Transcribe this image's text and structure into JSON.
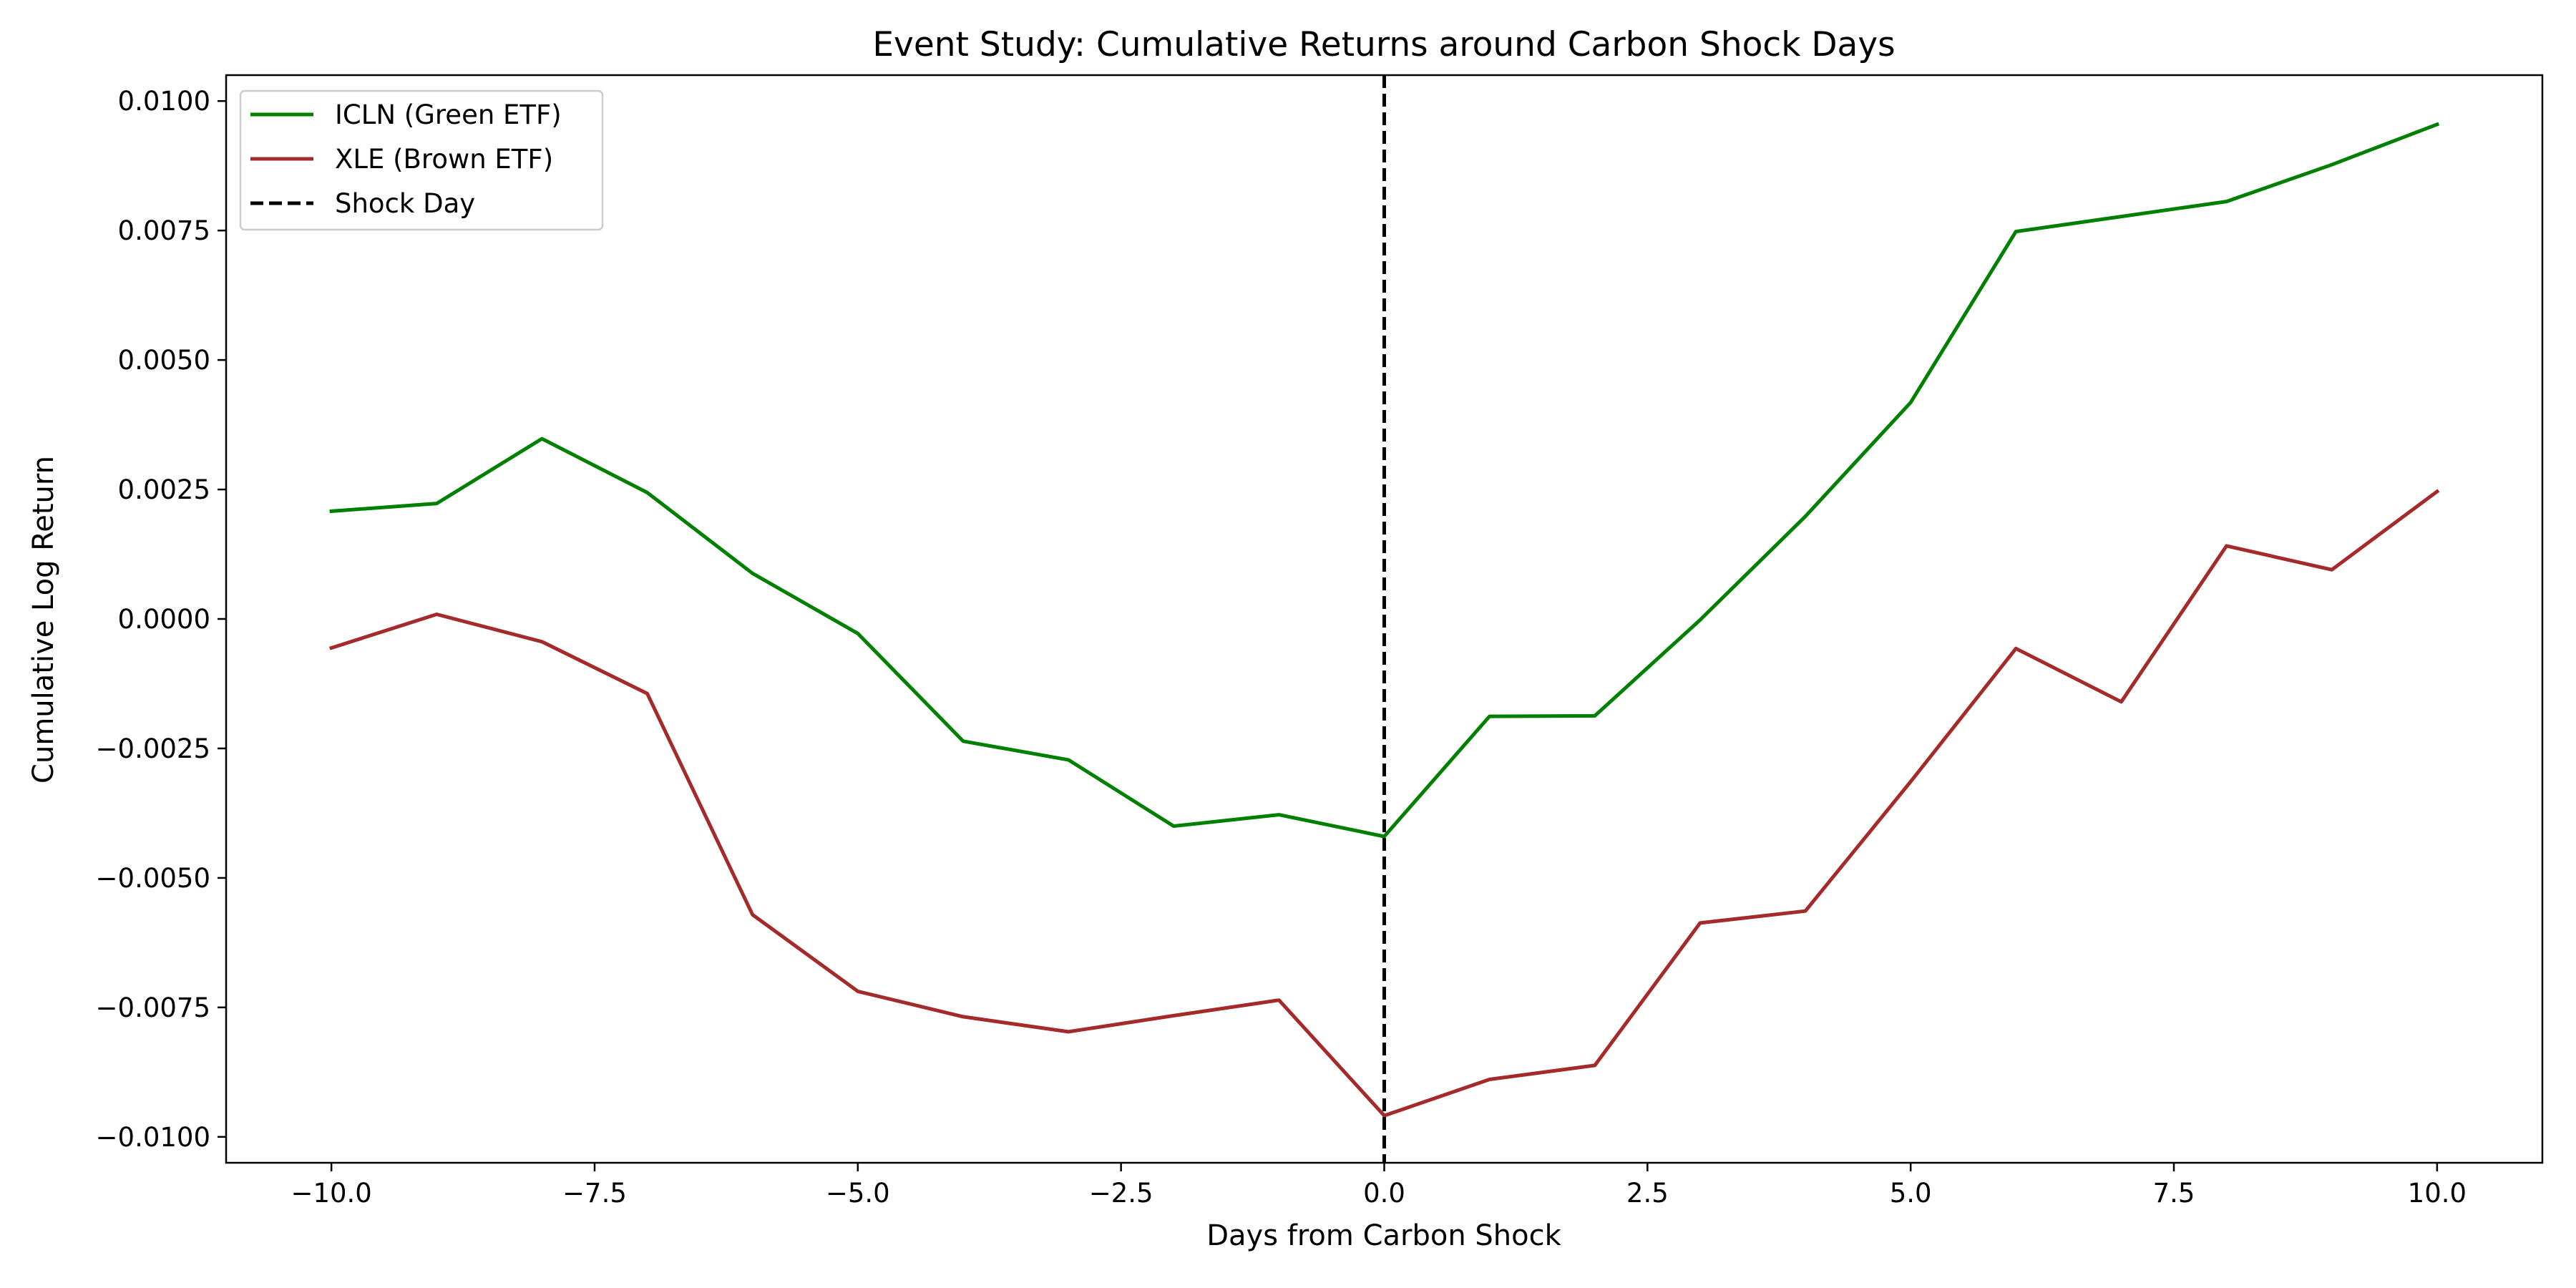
{
  "chart_data": {
    "type": "line",
    "title": "Event Study: Cumulative Returns around Carbon Shock Days",
    "xlabel": "Days from Carbon Shock",
    "ylabel": "Cumulative Log Return",
    "xlim": [
      -11.0,
      11.0
    ],
    "ylim": [
      -0.0105,
      0.0105
    ],
    "xticks": [
      -10.0,
      -7.5,
      -5.0,
      -2.5,
      0.0,
      2.5,
      5.0,
      7.5,
      10.0
    ],
    "xtick_labels": [
      "−10.0",
      "−7.5",
      "−5.0",
      "−2.5",
      "0.0",
      "2.5",
      "5.0",
      "7.5",
      "10.0"
    ],
    "yticks": [
      -0.01,
      -0.0075,
      -0.005,
      -0.0025,
      0.0,
      0.0025,
      0.005,
      0.0075,
      0.01
    ],
    "ytick_labels": [
      "−0.0100",
      "−0.0075",
      "−0.0050",
      "−0.0025",
      "0.0000",
      "0.0025",
      "0.0050",
      "0.0075",
      "0.0100"
    ],
    "grid": false,
    "legend_position": "top-left",
    "x": [
      -10,
      -9,
      -8,
      -7,
      -6,
      -5,
      -4,
      -3,
      -2,
      -1,
      0,
      1,
      2,
      3,
      4,
      5,
      6,
      7,
      8,
      9,
      10
    ],
    "series": [
      {
        "name": "ICLN (Green ETF)",
        "color": "#008000",
        "values": [
          0.00208,
          0.00223,
          0.00348,
          0.00244,
          0.00088,
          -0.00028,
          -0.00236,
          -0.00272,
          -0.004,
          -0.00378,
          -0.0042,
          -0.00188,
          -0.00187,
          -2e-05,
          0.00198,
          0.00418,
          0.00748,
          0.00777,
          0.00806,
          0.00877,
          0.00955
        ]
      },
      {
        "name": "XLE (Brown ETF)",
        "color": "#a52a2a",
        "values": [
          -0.00056,
          9e-05,
          -0.00044,
          -0.00144,
          -0.00571,
          -0.00719,
          -0.00768,
          -0.00797,
          -0.00766,
          -0.00736,
          -0.00959,
          -0.00889,
          -0.00862,
          -0.00587,
          -0.00564,
          -0.00314,
          -0.00057,
          -0.0016,
          0.00141,
          0.00095,
          0.00246
        ]
      }
    ],
    "vline": {
      "x": 0,
      "name": "Shock Day",
      "color": "#000000",
      "style": "dashed"
    }
  }
}
